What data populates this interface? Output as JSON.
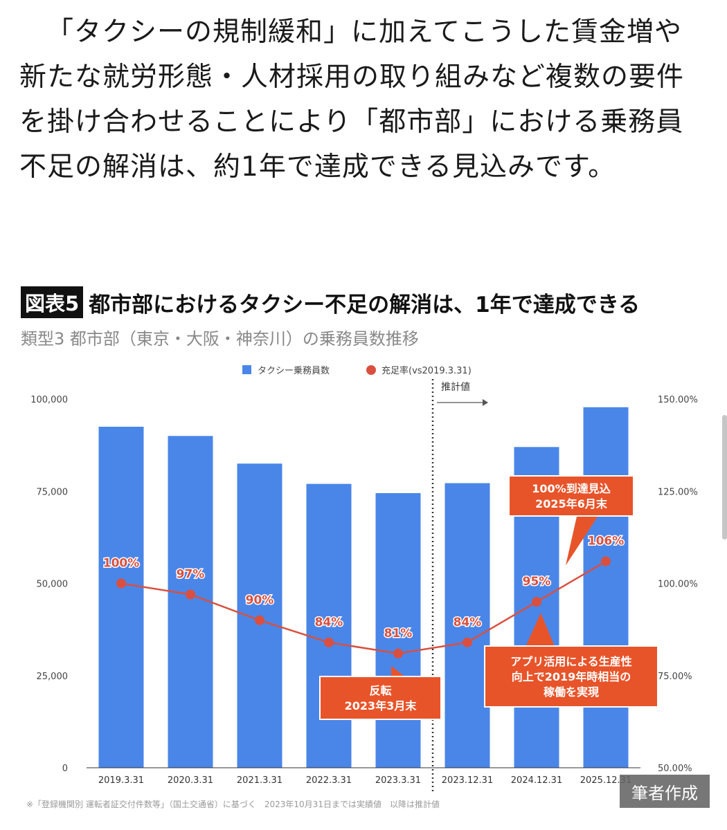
{
  "article": {
    "paragraph": "「タクシーの規制緩和」に加えてこうした賃金増や新たな就労形態・人材採用の取り組みなど複数の要件を掛け合わせることにより「都市部」における乗務員不足の解消は、約1年で達成できる見込みです。"
  },
  "figure": {
    "label": "図表5",
    "title": "都市部におけるタクシー不足の解消は、1年で達成できる",
    "subtitle": "類型3 都市部（東京・大阪・神奈川）の乗務員数推移",
    "source": "※「登録機関別 運転者証交付件数等」（国土交通省）に基づく　2023年10月31日までは実績値　以降は推計値",
    "credit": "筆者作成"
  },
  "chart_data": {
    "type": "bar",
    "categories": [
      "2019.3.31",
      "2020.3.31",
      "2021.3.31",
      "2022.3.31",
      "2023.3.31",
      "2023.12.31",
      "2024.12.31",
      "2025.12.31"
    ],
    "series": [
      {
        "name": "タクシー乗務員数",
        "type": "bar",
        "axis": "left",
        "color": "#4a86e8",
        "values": [
          92500,
          90000,
          82500,
          77000,
          74500,
          77200,
          87000,
          97800
        ]
      },
      {
        "name": "充足率(vs2019.3.31)",
        "type": "line",
        "axis": "right",
        "color": "#d95040",
        "values": [
          100,
          97,
          90,
          84,
          81,
          84,
          95,
          106
        ],
        "labels": [
          "100%",
          "97%",
          "90%",
          "84%",
          "81%",
          "84%",
          "95%",
          "106%"
        ]
      }
    ],
    "y_left": {
      "ylim": [
        0,
        100000
      ],
      "ticks": [
        "0",
        "25,000",
        "50,000",
        "75,000",
        "100,000"
      ]
    },
    "y_right": {
      "ylim": [
        50,
        150
      ],
      "ticks": [
        "50.00%",
        "75.00%",
        "100.00%",
        "125.00%",
        "150.00%"
      ]
    },
    "legend_position": "top-center",
    "grid": false,
    "estimate_marker": {
      "after_category": "2023.3.31",
      "label": "推計値"
    },
    "callouts": [
      {
        "lines": [
          "反転",
          "2023年3月末"
        ],
        "points_to": "2023.3.31"
      },
      {
        "lines": [
          "アプリ活用による生産性",
          "向上で2019年時相当の",
          "稼働を実現"
        ],
        "points_to": "2024.12.31"
      },
      {
        "lines": [
          "100%到達見込",
          "2025年6月末"
        ],
        "points_to": "2025.12.31"
      }
    ]
  }
}
